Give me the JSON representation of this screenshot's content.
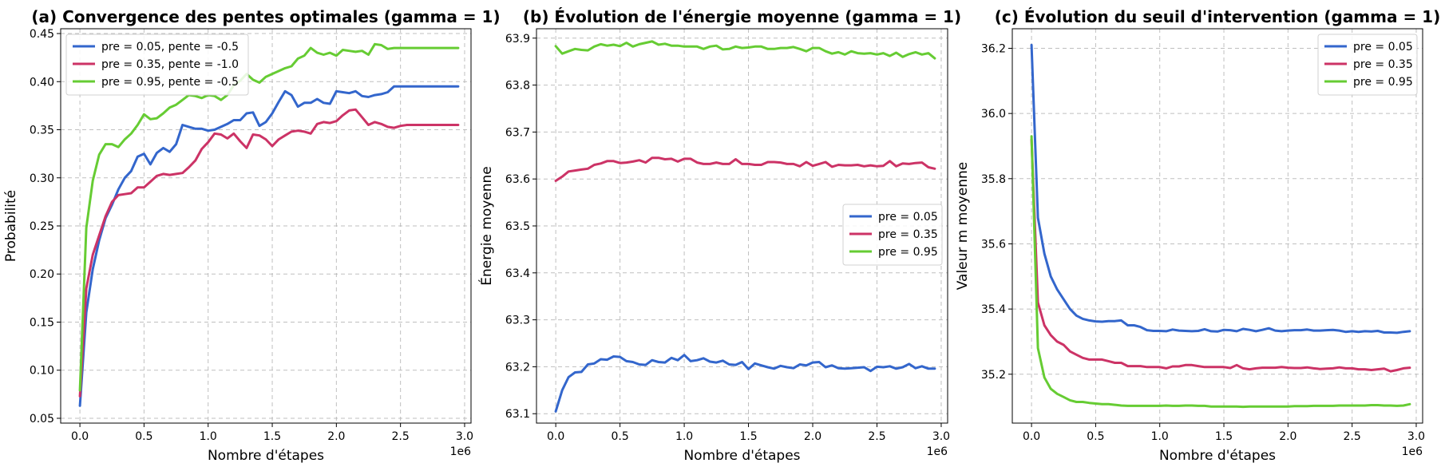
{
  "chart_data": [
    {
      "type": "line",
      "title": "(a) Convergence des pentes optimales (gamma = 1)",
      "xlabel": "Nombre d'étapes",
      "ylabel": "Probabilité",
      "x_multiplier": "1e6",
      "xlim": [
        -0.15,
        3.05
      ],
      "ylim": [
        0.045,
        0.455
      ],
      "xticks": [
        0.0,
        0.5,
        1.0,
        1.5,
        2.0,
        2.5,
        3.0
      ],
      "xtick_labels": [
        "0.0",
        "0.5",
        "1.0",
        "1.5",
        "2.0",
        "2.5",
        "3.0"
      ],
      "yticks": [
        0.05,
        0.1,
        0.15,
        0.2,
        0.25,
        0.3,
        0.35,
        0.4,
        0.45
      ],
      "ytick_labels": [
        "0.05",
        "0.10",
        "0.15",
        "0.20",
        "0.25",
        "0.30",
        "0.35",
        "0.40",
        "0.45"
      ],
      "grid": true,
      "legend_position": "top-left",
      "x": [
        0.0,
        0.05,
        0.1,
        0.15,
        0.2,
        0.25,
        0.3,
        0.35,
        0.4,
        0.45,
        0.5,
        0.55,
        0.6,
        0.65,
        0.7,
        0.75,
        0.8,
        0.85,
        0.9,
        0.95,
        1.0,
        1.05,
        1.1,
        1.15,
        1.2,
        1.25,
        1.3,
        1.35,
        1.4,
        1.45,
        1.5,
        1.55,
        1.6,
        1.65,
        1.7,
        1.75,
        1.8,
        1.85,
        1.9,
        1.95,
        2.0,
        2.05,
        2.1,
        2.15,
        2.2,
        2.25,
        2.3,
        2.35,
        2.4,
        2.45,
        2.5,
        2.55,
        2.6,
        2.65,
        2.7,
        2.75,
        2.8,
        2.85,
        2.9,
        2.95
      ],
      "series": [
        {
          "name": "pre = 0.05, pente = -0.5",
          "color": "#3366cc",
          "values": [
            0.063,
            0.16,
            0.205,
            0.235,
            0.258,
            0.272,
            0.288,
            0.3,
            0.307,
            0.322,
            0.325,
            0.314,
            0.326,
            0.331,
            0.327,
            0.335,
            0.355,
            0.353,
            0.351,
            0.351,
            0.349,
            0.35,
            0.353,
            0.356,
            0.36,
            0.36,
            0.367,
            0.368,
            0.354,
            0.358,
            0.367,
            0.379,
            0.39,
            0.386,
            0.374,
            0.378,
            0.378,
            0.382,
            0.378,
            0.377,
            0.39,
            0.389,
            0.388,
            0.39,
            0.385,
            0.384,
            0.386,
            0.387,
            0.389,
            0.395,
            0.395,
            0.395,
            0.395,
            0.395,
            0.395,
            0.395,
            0.395,
            0.395,
            0.395,
            0.395
          ]
        },
        {
          "name": "pre = 0.35, pente = -1.0",
          "color": "#cc3366",
          "values": [
            0.073,
            0.185,
            0.22,
            0.24,
            0.26,
            0.275,
            0.282,
            0.283,
            0.284,
            0.29,
            0.29,
            0.296,
            0.302,
            0.304,
            0.303,
            0.304,
            0.305,
            0.311,
            0.318,
            0.33,
            0.337,
            0.346,
            0.345,
            0.341,
            0.346,
            0.338,
            0.331,
            0.345,
            0.344,
            0.34,
            0.333,
            0.34,
            0.344,
            0.348,
            0.349,
            0.348,
            0.346,
            0.356,
            0.358,
            0.357,
            0.359,
            0.365,
            0.37,
            0.371,
            0.363,
            0.355,
            0.358,
            0.356,
            0.353,
            0.352,
            0.354,
            0.355,
            0.355,
            0.355,
            0.355,
            0.355,
            0.355,
            0.355,
            0.355,
            0.355
          ]
        },
        {
          "name": "pre = 0.95, pente = -0.5",
          "color": "#66cc33",
          "values": [
            0.079,
            0.248,
            0.297,
            0.324,
            0.335,
            0.335,
            0.332,
            0.34,
            0.346,
            0.355,
            0.366,
            0.361,
            0.362,
            0.367,
            0.373,
            0.376,
            0.381,
            0.386,
            0.385,
            0.383,
            0.386,
            0.385,
            0.381,
            0.386,
            0.396,
            0.401,
            0.408,
            0.402,
            0.399,
            0.405,
            0.408,
            0.411,
            0.414,
            0.416,
            0.424,
            0.427,
            0.435,
            0.43,
            0.428,
            0.43,
            0.427,
            0.433,
            0.432,
            0.431,
            0.432,
            0.428,
            0.439,
            0.438,
            0.434,
            0.435,
            0.435,
            0.435,
            0.435,
            0.435,
            0.435,
            0.435,
            0.435,
            0.435,
            0.435,
            0.435
          ]
        }
      ]
    },
    {
      "type": "line",
      "title": "(b) Évolution de l'énergie moyenne (gamma = 1)",
      "xlabel": "Nombre d'étapes",
      "ylabel": "Énergie moyenne",
      "x_multiplier": "1e6",
      "xlim": [
        -0.15,
        3.05
      ],
      "ylim": [
        63.08,
        63.92
      ],
      "xticks": [
        0.0,
        0.5,
        1.0,
        1.5,
        2.0,
        2.5,
        3.0
      ],
      "xtick_labels": [
        "0.0",
        "0.5",
        "1.0",
        "1.5",
        "2.0",
        "2.5",
        "3.0"
      ],
      "yticks": [
        63.1,
        63.2,
        63.3,
        63.4,
        63.5,
        63.6,
        63.7,
        63.8,
        63.9
      ],
      "ytick_labels": [
        "63.1",
        "63.2",
        "63.3",
        "63.4",
        "63.5",
        "63.6",
        "63.7",
        "63.8",
        "63.9"
      ],
      "grid": true,
      "legend_position": "center-right",
      "x": [
        0.0,
        0.05,
        0.1,
        0.15,
        0.2,
        0.25,
        0.3,
        0.35,
        0.4,
        0.45,
        0.5,
        0.55,
        0.6,
        0.65,
        0.7,
        0.75,
        0.8,
        0.85,
        0.9,
        0.95,
        1.0,
        1.05,
        1.1,
        1.15,
        1.2,
        1.25,
        1.3,
        1.35,
        1.4,
        1.45,
        1.5,
        1.55,
        1.6,
        1.65,
        1.7,
        1.75,
        1.8,
        1.85,
        1.9,
        1.95,
        2.0,
        2.05,
        2.1,
        2.15,
        2.2,
        2.25,
        2.3,
        2.35,
        2.4,
        2.45,
        2.5,
        2.55,
        2.6,
        2.65,
        2.7,
        2.75,
        2.8,
        2.85,
        2.9,
        2.95
      ],
      "series": [
        {
          "name": "pre = 0.05",
          "color": "#3366cc",
          "values": [
            63.105,
            63.15,
            63.178,
            63.188,
            63.189,
            63.205,
            63.207,
            63.216,
            63.215,
            63.222,
            63.221,
            63.212,
            63.21,
            63.205,
            63.204,
            63.214,
            63.21,
            63.209,
            63.219,
            63.214,
            63.225,
            63.212,
            63.214,
            63.218,
            63.211,
            63.209,
            63.213,
            63.205,
            63.204,
            63.21,
            63.195,
            63.207,
            63.203,
            63.199,
            63.196,
            63.202,
            63.199,
            63.197,
            63.205,
            63.203,
            63.209,
            63.21,
            63.199,
            63.203,
            63.197,
            63.196,
            63.197,
            63.198,
            63.199,
            63.191,
            63.2,
            63.199,
            63.201,
            63.196,
            63.199,
            63.206,
            63.197,
            63.201,
            63.196,
            63.196
          ]
        },
        {
          "name": "pre = 0.35",
          "color": "#cc3366",
          "values": [
            63.596,
            63.605,
            63.616,
            63.618,
            63.62,
            63.622,
            63.63,
            63.633,
            63.638,
            63.638,
            63.634,
            63.635,
            63.637,
            63.64,
            63.635,
            63.645,
            63.645,
            63.642,
            63.643,
            63.637,
            63.643,
            63.643,
            63.635,
            63.632,
            63.632,
            63.635,
            63.632,
            63.632,
            63.642,
            63.632,
            63.632,
            63.63,
            63.63,
            63.636,
            63.636,
            63.635,
            63.632,
            63.632,
            63.627,
            63.636,
            63.628,
            63.632,
            63.636,
            63.626,
            63.63,
            63.629,
            63.629,
            63.63,
            63.627,
            63.629,
            63.627,
            63.628,
            63.638,
            63.627,
            63.633,
            63.632,
            63.634,
            63.635,
            63.625,
            63.622
          ]
        },
        {
          "name": "pre = 0.95",
          "color": "#66cc33",
          "values": [
            63.883,
            63.867,
            63.872,
            63.877,
            63.875,
            63.874,
            63.882,
            63.887,
            63.884,
            63.886,
            63.883,
            63.89,
            63.882,
            63.887,
            63.89,
            63.893,
            63.886,
            63.888,
            63.884,
            63.884,
            63.882,
            63.882,
            63.882,
            63.877,
            63.882,
            63.884,
            63.876,
            63.877,
            63.882,
            63.879,
            63.88,
            63.882,
            63.882,
            63.877,
            63.877,
            63.879,
            63.879,
            63.881,
            63.877,
            63.872,
            63.879,
            63.879,
            63.872,
            63.867,
            63.87,
            63.865,
            63.872,
            63.868,
            63.867,
            63.868,
            63.865,
            63.868,
            63.862,
            63.869,
            63.86,
            63.866,
            63.87,
            63.865,
            63.868,
            63.857
          ]
        }
      ]
    },
    {
      "type": "line",
      "title": "(c) Évolution du seuil d'intervention (gamma = 1)",
      "xlabel": "Nombre d'étapes",
      "ylabel": "Valeur m moyenne",
      "x_multiplier": "1e6",
      "xlim": [
        -0.15,
        3.05
      ],
      "ylim": [
        35.05,
        36.26
      ],
      "xticks": [
        0.0,
        0.5,
        1.0,
        1.5,
        2.0,
        2.5,
        3.0
      ],
      "xtick_labels": [
        "0.0",
        "0.5",
        "1.0",
        "1.5",
        "2.0",
        "2.5",
        "3.0"
      ],
      "yticks": [
        35.2,
        35.4,
        35.6,
        35.8,
        36.0,
        36.2
      ],
      "ytick_labels": [
        "35.2",
        "35.4",
        "35.6",
        "35.8",
        "36.0",
        "36.2"
      ],
      "grid": true,
      "legend_position": "top-right",
      "x": [
        0.0,
        0.05,
        0.1,
        0.15,
        0.2,
        0.25,
        0.3,
        0.35,
        0.4,
        0.45,
        0.5,
        0.55,
        0.6,
        0.65,
        0.7,
        0.75,
        0.8,
        0.85,
        0.9,
        0.95,
        1.0,
        1.05,
        1.1,
        1.15,
        1.2,
        1.25,
        1.3,
        1.35,
        1.4,
        1.45,
        1.5,
        1.55,
        1.6,
        1.65,
        1.7,
        1.75,
        1.8,
        1.85,
        1.9,
        1.95,
        2.0,
        2.05,
        2.1,
        2.15,
        2.2,
        2.25,
        2.3,
        2.35,
        2.4,
        2.45,
        2.5,
        2.55,
        2.6,
        2.65,
        2.7,
        2.75,
        2.8,
        2.85,
        2.9,
        2.95
      ],
      "series": [
        {
          "name": "pre = 0.05",
          "color": "#3366cc",
          "values": [
            36.21,
            35.68,
            35.57,
            35.5,
            35.46,
            35.43,
            35.4,
            35.38,
            35.37,
            35.365,
            35.362,
            35.361,
            35.363,
            35.363,
            35.365,
            35.35,
            35.35,
            35.345,
            35.335,
            35.333,
            35.333,
            35.332,
            35.337,
            35.334,
            35.333,
            35.332,
            35.333,
            35.338,
            35.332,
            35.331,
            35.336,
            35.335,
            35.332,
            35.339,
            35.336,
            35.332,
            35.336,
            35.341,
            35.334,
            35.332,
            35.334,
            35.335,
            35.335,
            35.337,
            35.334,
            35.334,
            35.335,
            35.336,
            35.334,
            35.33,
            35.332,
            35.33,
            35.332,
            35.331,
            35.333,
            35.328,
            35.328,
            35.327,
            35.33,
            35.332
          ]
        },
        {
          "name": "pre = 0.35",
          "color": "#cc3366",
          "values": [
            35.92,
            35.42,
            35.35,
            35.32,
            35.3,
            35.29,
            35.27,
            35.26,
            35.25,
            35.245,
            35.245,
            35.245,
            35.24,
            35.235,
            35.235,
            35.225,
            35.225,
            35.225,
            35.222,
            35.222,
            35.222,
            35.218,
            35.224,
            35.224,
            35.228,
            35.228,
            35.225,
            35.222,
            35.222,
            35.222,
            35.222,
            35.219,
            35.228,
            35.218,
            35.215,
            35.218,
            35.22,
            35.22,
            35.22,
            35.222,
            35.22,
            35.219,
            35.219,
            35.221,
            35.218,
            35.216,
            35.217,
            35.218,
            35.221,
            35.218,
            35.218,
            35.215,
            35.215,
            35.213,
            35.215,
            35.217,
            35.209,
            35.213,
            35.218,
            35.22
          ]
        },
        {
          "name": "pre = 0.95",
          "color": "#66cc33",
          "values": [
            35.93,
            35.28,
            35.19,
            35.155,
            35.14,
            35.13,
            35.12,
            35.115,
            35.115,
            35.112,
            35.11,
            35.108,
            35.108,
            35.106,
            35.104,
            35.103,
            35.103,
            35.103,
            35.103,
            35.103,
            35.103,
            35.104,
            35.103,
            35.103,
            35.104,
            35.104,
            35.103,
            35.103,
            35.101,
            35.101,
            35.101,
            35.101,
            35.101,
            35.1,
            35.101,
            35.101,
            35.101,
            35.101,
            35.101,
            35.101,
            35.101,
            35.102,
            35.102,
            35.102,
            35.103,
            35.103,
            35.103,
            35.103,
            35.104,
            35.104,
            35.104,
            35.104,
            35.104,
            35.105,
            35.105,
            35.104,
            35.104,
            35.103,
            35.104,
            35.108
          ]
        }
      ]
    }
  ]
}
